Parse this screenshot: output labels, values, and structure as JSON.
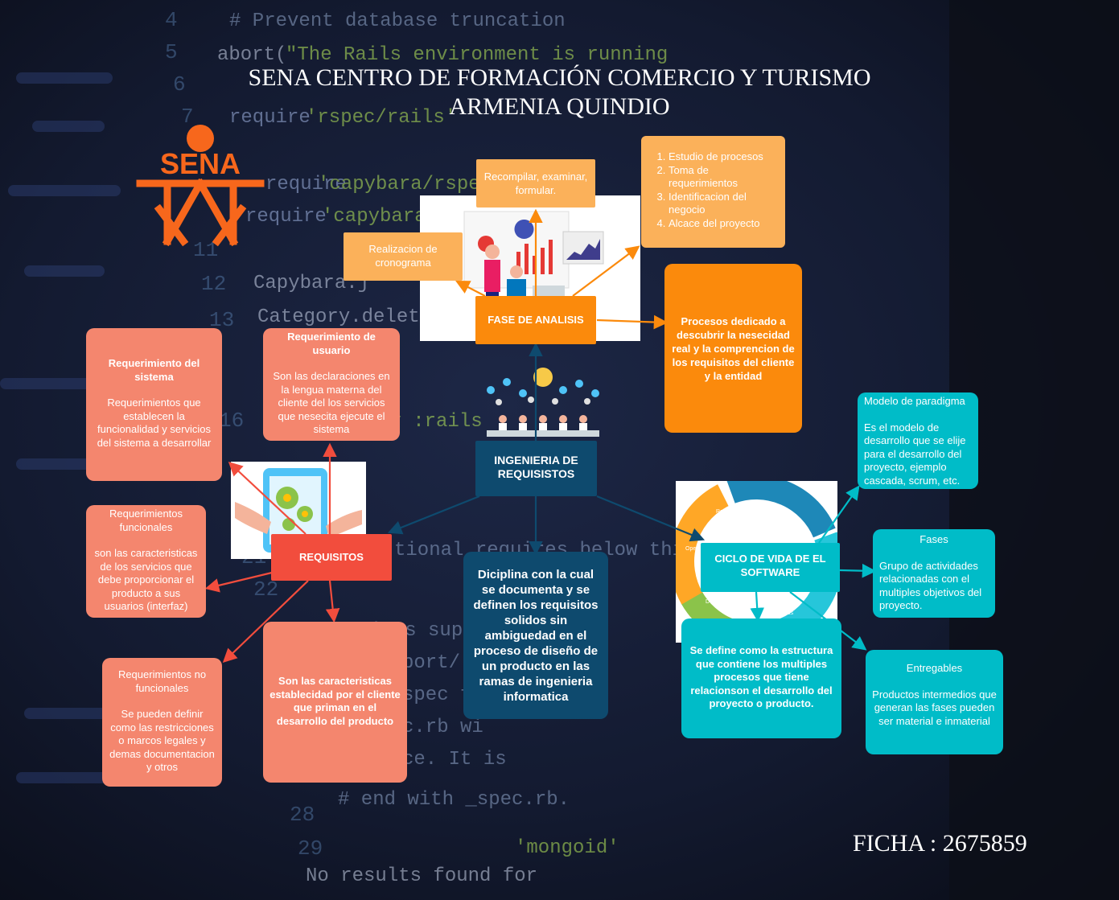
{
  "header": {
    "title_line1": "SENA CENTRO DE FORMACIÓN COMERCIO Y TURISMO",
    "title_line2": "ARMENIA QUINDIO"
  },
  "logo": {
    "text": "SENA",
    "color": "#f7671c"
  },
  "footer": {
    "ficha": "FICHA : 2675859"
  },
  "center": {
    "title": "INGENIERIA DE REQUISISTOS",
    "definition": "Diciplina con la cual se documenta y se definen los requisitos solidos sin ambiguedad en el proceso de diseño de un producto en las ramas de ingenieria informatica"
  },
  "analysis": {
    "title": "FASE DE ANALISIS",
    "recompilar": "Recompilar, examinar, formular.",
    "cronograma": "Realizacion de cronograma",
    "steps": [
      "Estudio de procesos",
      "Toma de requerimientos",
      "Identificacion del negocio",
      "Alcace del proyecto"
    ],
    "description": "Procesos dedicado a descubrir la nesecidad real y la comprencion de los requisitos del cliente y la entidad"
  },
  "requisitos": {
    "title": "REQUISITOS",
    "sistema_title": "Requerimiento del sistema",
    "sistema_desc": "Requerimientos que establecen la funcionalidad y servicios del sistema a desarrollar",
    "usuario_title": "Requerimiento de usuario",
    "usuario_desc": "Son las declaraciones en la lengua materna del cliente del los servicios que nesecita ejecute el sistema",
    "funcionales_title": "Requerimientos funcionales",
    "funcionales_desc": "son las caracteristicas de los servicios que debe proporcionar el producto a sus usuarios (interfaz)",
    "no_funcionales_title": "Requerimientos no funcionales",
    "no_funcionales_desc": "Se pueden definir como las restricciones o marcos legales  y demas documentacion y otros",
    "description": "Son las caracteristicas establecidad por el cliente  que priman en el desarrollo del producto"
  },
  "ciclo": {
    "title": "CICLO DE VIDA DE EL SOFTWARE",
    "description": "Se define como la estructura que contiene los multiples procesos que tiene relacionson el desarrollo del proyecto o producto.",
    "modelo_title": "Modelo de paradigma",
    "modelo_desc": "Es el modelo de desarrollo que se elije para el desarrollo del proyecto, ejemplo cascada, scrum, etc.",
    "fases_title": "Fases",
    "fases_desc": "Grupo de actividades relacionadas con el multiples objetivos del proyecto.",
    "entregables_title": "Entregables",
    "entregables_desc": "Productos intermedios que generan las fases pueden ser material e inmaterial",
    "cycle_labels": [
      "Requerimientos",
      "Diseño",
      "Pruebas",
      "Despliegue",
      "Oper"
    ]
  },
  "colors": {
    "salmon": "#f4866e",
    "orange": "#fb8a0c",
    "light_orange": "#fbb15a",
    "teal": "#00bcc8",
    "navy": "#0e4a6e",
    "red": "#f24d3d"
  }
}
